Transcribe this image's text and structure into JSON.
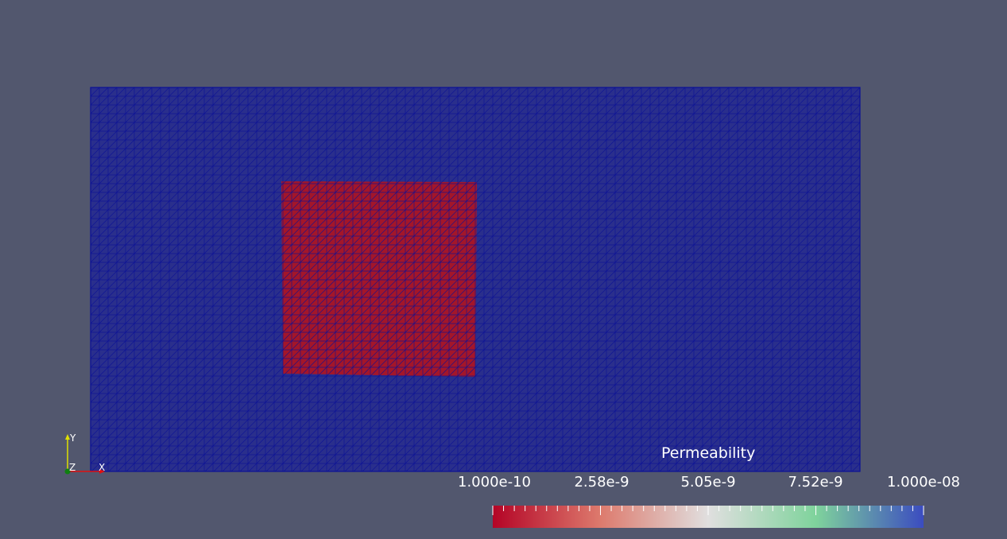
{
  "scalar_bar": {
    "title": "Permeability",
    "labels": [
      "1.000e-10",
      "2.58e-9",
      "5.05e-9",
      "7.52e-9",
      "1.000e-08"
    ],
    "range": [
      1e-10,
      1e-08
    ],
    "colormap": [
      "#b40426",
      "#dd7a6d",
      "#e0dfdf",
      "#7fd39c",
      "#3b4cc0"
    ]
  },
  "mesh": {
    "background_value": 1e-08,
    "inclusion_value": 1e-10,
    "background_color": "#2a2f8c",
    "inclusion_color": "#a3162a",
    "edge_color": "#0b1196"
  },
  "axes": {
    "y_label": "Y",
    "z_label": "Z",
    "x_label": "X",
    "y_color": "#e0e000",
    "x_color": "#e01010",
    "origin_color": "#108010"
  },
  "colors": {
    "viewport_background": "#52576e"
  }
}
